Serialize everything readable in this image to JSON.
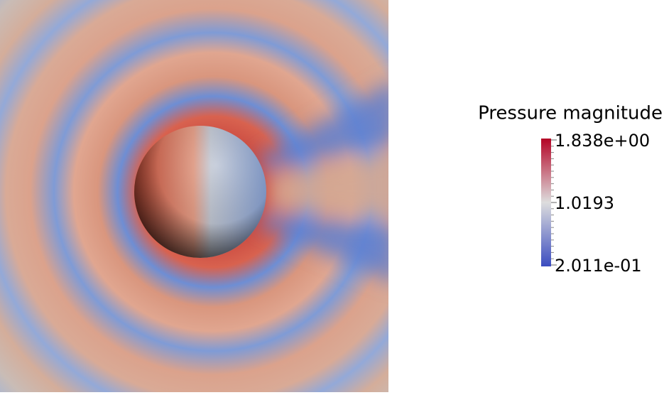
{
  "colorbar": {
    "title": "Pressure magnitude",
    "range": [
      0.2011,
      1.838
    ],
    "ticks": [
      {
        "value": 1.838,
        "label": "1.838e+00"
      },
      {
        "value": 1.0193,
        "label": "1.0193"
      },
      {
        "value": 0.2011,
        "label": "2.011e-01"
      }
    ]
  }
}
